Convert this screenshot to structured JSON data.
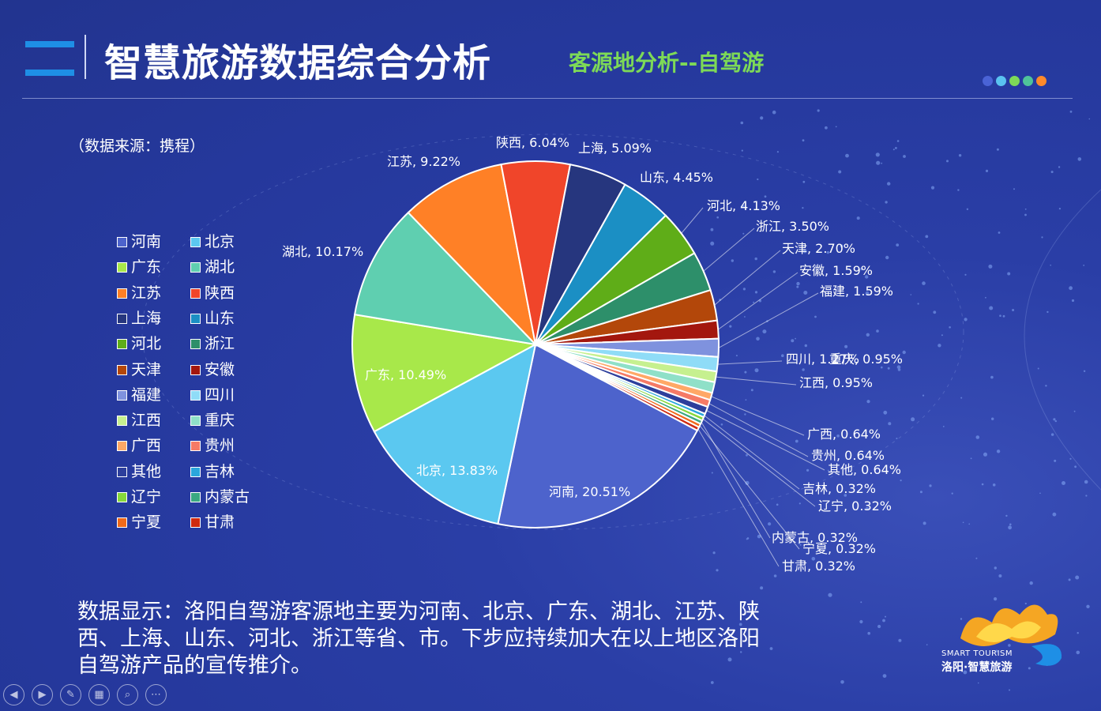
{
  "header": {
    "title": "智慧旅游数据综合分析",
    "subtitle": "客源地分析--自驾游"
  },
  "colors": {
    "accent_dots": [
      "#4a63d6",
      "#5ac3f0",
      "#7dd957",
      "#4fc39a",
      "#ff8a2a"
    ]
  },
  "source_note": "（数据来源：携程）",
  "chart_data": {
    "type": "pie",
    "legend_position": "left",
    "slices": [
      {
        "name": "河南",
        "value": 20.51,
        "label": "河南, 20.51%",
        "color": "#4d63cc"
      },
      {
        "name": "北京",
        "value": 13.83,
        "label": "北京, 13.83%",
        "color": "#5bc8f0"
      },
      {
        "name": "广东",
        "value": 10.49,
        "label": "广东, 10.49%",
        "color": "#a8e84a"
      },
      {
        "name": "湖北",
        "value": 10.17,
        "label": "湖北, 10.17%",
        "color": "#5fcfb0"
      },
      {
        "name": "江苏",
        "value": 9.22,
        "label": "江苏, 9.22%",
        "color": "#ff8026"
      },
      {
        "name": "陕西",
        "value": 6.04,
        "label": "陕西, 6.04%",
        "color": "#f0452a"
      },
      {
        "name": "上海",
        "value": 5.09,
        "label": "上海, 5.09%",
        "color": "#26367e"
      },
      {
        "name": "山东",
        "value": 4.45,
        "label": "山东, 4.45%",
        "color": "#1b8fc4"
      },
      {
        "name": "河北",
        "value": 4.13,
        "label": "河北, 4.13%",
        "color": "#5fad18"
      },
      {
        "name": "浙江",
        "value": 3.5,
        "label": "浙江, 3.50%",
        "color": "#2d8f6a"
      },
      {
        "name": "天津",
        "value": 2.7,
        "label": "天津, 2.70%",
        "color": "#b3470a"
      },
      {
        "name": "安徽",
        "value": 1.59,
        "label": "安徽, 1.59%",
        "color": "#a3170e"
      },
      {
        "name": "福建",
        "value": 1.59,
        "label": "福建, 1.59%",
        "color": "#7f92de"
      },
      {
        "name": "四川",
        "value": 1.27,
        "label": "四川, 1.27%",
        "color": "#8fdcf7"
      },
      {
        "name": "江西",
        "value": 0.95,
        "label": "江西, 0.95%",
        "color": "#c6f08f"
      },
      {
        "name": "重庆",
        "value": 0.95,
        "label": "重庆, 0.95%",
        "color": "#8fe0c8"
      },
      {
        "name": "广西",
        "value": 0.64,
        "label": "广西, 0.64%",
        "color": "#ffa866"
      },
      {
        "name": "贵州",
        "value": 0.64,
        "label": "贵州, 0.64%",
        "color": "#f57a66"
      },
      {
        "name": "其他",
        "value": 0.64,
        "label": "其他, 0.64%",
        "color": "#2d3f9c"
      },
      {
        "name": "吉林",
        "value": 0.32,
        "label": "吉林, 0.32%",
        "color": "#2aa6dc"
      },
      {
        "name": "辽宁",
        "value": 0.32,
        "label": "辽宁, 0.32%",
        "color": "#86d83a"
      },
      {
        "name": "内蒙古",
        "value": 0.32,
        "label": "内蒙古, 0.32%",
        "color": "#3aa882"
      },
      {
        "name": "宁夏",
        "value": 0.32,
        "label": "宁夏, 0.32%",
        "color": "#f06a1a"
      },
      {
        "name": "甘肃",
        "value": 0.32,
        "label": "甘肃, 0.32%",
        "color": "#d02a10"
      }
    ]
  },
  "summary": "数据显示：洛阳自驾游客源地主要为河南、北京、广东、湖北、江苏、陕西、上海、山东、河北、浙江等省、市。下步应持续加大在以上地区洛阳自驾游产品的宣传推介。",
  "logo": {
    "line1": "SMART TOURISM",
    "line2": "洛阳·智慧旅游"
  },
  "toolbar": {
    "prev": "prev-icon",
    "next": "next-icon",
    "pen": "pen-icon",
    "slides": "slides-icon",
    "zoom": "zoom-icon",
    "more": "more-icon"
  }
}
